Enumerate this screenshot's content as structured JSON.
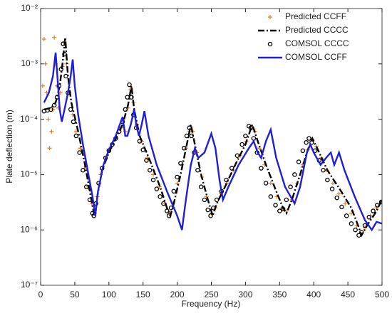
{
  "chart_data": {
    "type": "line",
    "xlabel": "Frequency (Hz)",
    "ylabel": "Plate deflection (m)",
    "xlim": [
      0,
      500
    ],
    "xticks": [
      0,
      50,
      100,
      150,
      200,
      250,
      300,
      350,
      400,
      450,
      500
    ],
    "ylim": [
      1e-07,
      0.01
    ],
    "ylog": true,
    "yticks": [
      {
        "value": 1e-07,
        "label": "10⁻⁷"
      },
      {
        "value": 1e-06,
        "label": "10⁻⁶"
      },
      {
        "value": 1e-05,
        "label": "10⁻⁵"
      },
      {
        "value": 0.0001,
        "label": "10⁻⁴"
      },
      {
        "value": 0.001,
        "label": "10⁻³"
      },
      {
        "value": 0.01,
        "label": "10⁻²"
      }
    ],
    "legend": "top-right",
    "series": [
      {
        "name": "Predicted CCFF",
        "color": "#d9822b",
        "marker": "plus",
        "line": "none",
        "x": [
          3,
          5,
          7,
          9,
          11,
          13,
          16,
          18,
          20,
          22,
          24,
          26,
          29,
          32,
          35,
          38,
          42,
          47,
          52,
          58,
          64,
          70,
          75,
          79,
          83,
          88,
          95,
          102,
          110,
          118,
          124,
          128,
          132,
          136,
          141,
          148,
          156,
          165,
          174,
          182,
          189,
          194,
          200,
          207,
          213,
          218,
          223,
          229,
          236,
          243,
          250,
          256,
          264,
          273,
          282,
          292,
          301,
          308,
          314,
          320,
          328,
          337,
          346,
          354,
          361,
          368,
          376,
          384,
          391,
          398,
          404,
          411,
          419,
          428,
          437,
          446,
          455,
          463,
          469,
          475,
          483,
          492,
          500
        ],
        "values": [
          0.0004,
          0.0028,
          0.001,
          0.0003,
          0.0001,
          3e-05,
          6e-05,
          0.00015,
          0.003,
          0.001,
          0.0004,
          0.00016,
          0.0003,
          0.0009,
          0.0025,
          0.001,
          0.0003,
          0.00012,
          6e-05,
          3e-05,
          1.3e-05,
          6e-06,
          3e-06,
          2e-06,
          4e-06,
          1e-05,
          2e-05,
          3e-05,
          4.5e-05,
          7e-05,
          6e-05,
          0.00016,
          0.00035,
          0.0002,
          8e-05,
          4e-05,
          2e-05,
          1e-05,
          6e-06,
          3e-06,
          2e-06,
          3e-06,
          7e-06,
          1.5e-05,
          3e-05,
          6e-05,
          6e-05,
          2.5e-05,
          9e-06,
          4e-06,
          2e-06,
          2.5e-06,
          4.5e-06,
          7e-06,
          1.2e-05,
          2.2e-05,
          4e-05,
          7e-05,
          6e-05,
          3e-05,
          1.5e-05,
          7e-06,
          4e-06,
          2.5e-06,
          2.2e-06,
          3.5e-06,
          7e-06,
          1.5e-05,
          2.8e-05,
          4.2e-05,
          3.2e-05,
          2e-05,
          1.2e-05,
          7e-06,
          4.5e-06,
          3e-06,
          2e-06,
          1.2e-06,
          8.5e-07,
          1.1e-06,
          1.8e-06,
          2.5e-06,
          3.3e-06
        ]
      },
      {
        "name": "Predicted CCCC",
        "color": "#000000",
        "marker": "none",
        "line": "dashdot",
        "x": [
          5,
          15,
          22,
          28,
          32,
          36,
          40,
          45,
          55,
          65,
          72,
          78,
          80,
          83,
          90,
          100,
          110,
          120,
          128,
          133,
          137,
          145,
          160,
          175,
          185,
          190,
          195,
          205,
          213,
          220,
          227,
          235,
          245,
          252,
          258,
          270,
          285,
          300,
          310,
          318,
          330,
          345,
          355,
          360,
          368,
          380,
          390,
          398,
          405,
          420,
          440,
          455,
          465,
          470,
          478,
          490,
          500
        ],
        "values": [
          0.00015,
          0.00016,
          0.0002,
          0.0004,
          0.001,
          0.003,
          0.0006,
          0.0002,
          6e-05,
          1.5e-05,
          5e-06,
          2e-06,
          1.8e-06,
          4e-06,
          1.2e-05,
          2.5e-05,
          4.5e-05,
          8e-05,
          0.00018,
          0.0004,
          0.00015,
          5e-05,
          1.8e-05,
          6e-06,
          2.5e-06,
          1.8e-06,
          3e-06,
          1e-05,
          3e-05,
          8e-05,
          3e-05,
          1e-05,
          3.5e-06,
          1.8e-06,
          3e-06,
          6e-06,
          1.5e-05,
          3.5e-05,
          8e-05,
          4e-05,
          1.5e-05,
          5e-06,
          2.5e-06,
          2e-06,
          3.5e-06,
          1e-05,
          2.5e-05,
          4.5e-05,
          3e-05,
          1.2e-05,
          5e-06,
          2.5e-06,
          1.2e-06,
          8e-07,
          1.2e-06,
          2e-06,
          3.5e-06
        ]
      },
      {
        "name": "COMSOL CCCC",
        "color": "#000000",
        "marker": "circle",
        "line": "none",
        "x": [
          5,
          10,
          15,
          20,
          24,
          27,
          30,
          33,
          35,
          37,
          40,
          44,
          48,
          52,
          57,
          62,
          67,
          72,
          76,
          78,
          81,
          85,
          90,
          95,
          100,
          105,
          110,
          115,
          120,
          124,
          127,
          130,
          133,
          136,
          140,
          145,
          150,
          155,
          160,
          165,
          170,
          175,
          180,
          185,
          188,
          191,
          195,
          200,
          205,
          210,
          214,
          218,
          221,
          225,
          230,
          235,
          240,
          245,
          249,
          253,
          258,
          265,
          272,
          280,
          288,
          295,
          300,
          305,
          308,
          312,
          317,
          323,
          330,
          337,
          344,
          350,
          355,
          360,
          366,
          372,
          378,
          384,
          389,
          393,
          397,
          402,
          408,
          414,
          420,
          427,
          434,
          441,
          448,
          455,
          461,
          466,
          470,
          475,
          481,
          487,
          493,
          499
        ],
        "values": [
          0.00014,
          0.000145,
          0.00015,
          0.00018,
          0.00025,
          0.0004,
          0.0008,
          0.0023,
          0.0015,
          0.0006,
          0.0003,
          0.00015,
          9e-05,
          5e-05,
          2.5e-05,
          1.2e-05,
          6e-06,
          3.5e-06,
          2e-06,
          1.8e-06,
          3e-06,
          7e-06,
          1.3e-05,
          2e-05,
          2.7e-05,
          3.5e-05,
          4.5e-05,
          6e-05,
          9e-05,
          0.00015,
          0.00025,
          0.00042,
          0.00025,
          0.00012,
          7e-05,
          4e-05,
          2.8e-05,
          1.8e-05,
          1.2e-05,
          8e-06,
          5.5e-06,
          4e-06,
          3e-06,
          2.2e-06,
          1.8e-06,
          2.5e-06,
          5e-06,
          9e-06,
          1.6e-05,
          3e-05,
          5e-05,
          7e-05,
          5e-05,
          2.5e-05,
          1.2e-05,
          6e-06,
          3.5e-06,
          2.3e-06,
          1.8e-06,
          2.5e-06,
          3.5e-06,
          5e-06,
          8e-06,
          1.3e-05,
          2.2e-05,
          3.5e-05,
          5e-05,
          7.5e-05,
          7e-05,
          4.5e-05,
          2.5e-05,
          1.3e-05,
          7e-06,
          4e-06,
          2.8e-06,
          2.2e-06,
          2.4e-06,
          3.5e-06,
          6e-06,
          1e-05,
          1.7e-05,
          2.7e-05,
          3.8e-05,
          4.5e-05,
          3.8e-05,
          2.7e-05,
          1.8e-05,
          1.2e-05,
          8e-06,
          5.5e-06,
          3.8e-06,
          2.6e-06,
          1.8e-06,
          1.3e-06,
          1e-06,
          8e-07,
          9e-07,
          1.2e-06,
          1.7e-06,
          2.2e-06,
          2.8e-06,
          3.2e-06
        ]
      },
      {
        "name": "COMSOL CCFF",
        "color": "#1f1fd6",
        "marker": "none",
        "line": "solid",
        "x": [
          5,
          12,
          18,
          22,
          25,
          28,
          31,
          35,
          40,
          44,
          47,
          50,
          55,
          62,
          70,
          76,
          80,
          84,
          92,
          100,
          110,
          120,
          124,
          127,
          132,
          137,
          140,
          144,
          148,
          152,
          158,
          170,
          185,
          200,
          207,
          212,
          220,
          226,
          231,
          240,
          250,
          256,
          262,
          267,
          275,
          290,
          305,
          312,
          318,
          323,
          330,
          337,
          345,
          358,
          372,
          380,
          390,
          395,
          400,
          410,
          418,
          425,
          430,
          437,
          445,
          460,
          475,
          485,
          492,
          500
        ],
        "values": [
          0.0002,
          0.0003,
          0.0006,
          0.0016,
          0.0005,
          0.00015,
          9e-05,
          0.00015,
          0.0003,
          0.0006,
          0.0012,
          0.0004,
          0.00012,
          3.5e-05,
          1e-05,
          4e-06,
          1.8e-06,
          5e-06,
          1.5e-05,
          2.8e-05,
          5e-05,
          0.00011,
          5e-05,
          5e-05,
          8e-05,
          0.00015,
          8e-05,
          5e-05,
          8e-05,
          0.00014,
          5e-05,
          1.5e-05,
          5e-06,
          1.8e-06,
          1e-06,
          3e-06,
          1.5e-05,
          3e-05,
          2e-05,
          2.5e-05,
          5.5e-05,
          3e-05,
          8e-06,
          3.5e-06,
          6e-06,
          1.5e-05,
          3e-05,
          4e-05,
          2.5e-05,
          2e-05,
          4e-05,
          6.5e-05,
          2e-05,
          6e-06,
          3e-06,
          6e-06,
          2.5e-05,
          3.5e-05,
          2.5e-05,
          1.5e-05,
          2e-05,
          2.5e-05,
          1.5e-05,
          2.5e-05,
          1.2e-05,
          4e-06,
          1.5e-06,
          1e-06,
          1.4e-06,
          1.3e-06
        ]
      }
    ]
  }
}
